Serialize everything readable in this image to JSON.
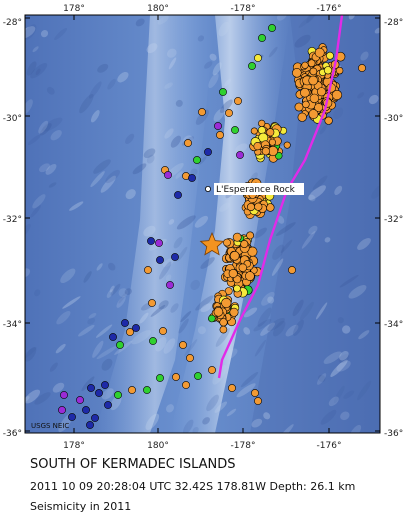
{
  "map": {
    "lon_ticks_top": [
      "178°",
      "180°",
      "-178°",
      "-176°"
    ],
    "lon_ticks_bottom": [
      "178°",
      "180°",
      "-178°",
      "-176°"
    ],
    "lat_ticks_left": [
      "-28°",
      "-30°",
      "-32°",
      "-34°",
      "-36°"
    ],
    "lat_ticks_right": [
      "-28°",
      "-30°",
      "-32°",
      "-34°",
      "-36°"
    ],
    "place_label": "L'Esperance Rock",
    "credit": "USGS NEIC",
    "colors": {
      "ocean": "#5f85c8",
      "ridge": "#b9cdea",
      "plate_boundary": "#e12be8",
      "event_star": "#f39320",
      "depth_orange": "#f39a33",
      "depth_yellow": "#f6ea3b",
      "depth_green": "#2fd12f",
      "depth_purple": "#9b2bd6",
      "depth_blue": "#1e2aa8"
    }
  },
  "caption": {
    "title": "SOUTH OF KERMADEC ISLANDS",
    "event": "2011 10 09 20:28:04 UTC 32.42S 178.81W Depth: 26.1 km",
    "subtitle": "Seismicity in 2011"
  }
}
